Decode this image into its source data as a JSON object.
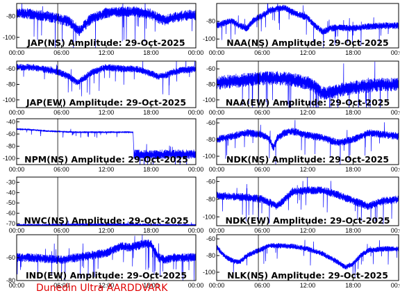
{
  "footer": "Dunedin Ultra AARDDVARK",
  "colors": {
    "trace": "#0000ff",
    "axis": "#000000",
    "footer": "#e00000"
  },
  "chart_data": [
    {
      "type": "line",
      "title": "JAP(NS) Amplitude: 29-Oct-2025",
      "xticks": [
        "00:00",
        "06:00",
        "12:00",
        "18:00",
        "00:00"
      ],
      "yticks": [
        -80,
        -100
      ],
      "ylim": [
        -110,
        -68
      ],
      "noise": 4.0,
      "marker": 5.5,
      "x": [
        0,
        2,
        4,
        5.5,
        7,
        8.4,
        10,
        12,
        14,
        16,
        18,
        19,
        20,
        21,
        22,
        23,
        24
      ],
      "y": [
        -77,
        -78,
        -80,
        -82,
        -85,
        -94,
        -82,
        -77,
        -76,
        -76,
        -78,
        -82,
        -84,
        -81,
        -80,
        -79,
        -79
      ]
    },
    {
      "type": "line",
      "title": "NAA(NS) Amplitude: 29-Oct-2025",
      "xticks": [
        "00:00",
        "06:00",
        "12:00",
        "18:00",
        "00:00"
      ],
      "yticks": [
        -80,
        -100
      ],
      "ylim": [
        -110,
        -60
      ],
      "noise": 3.0,
      "marker": 5.5,
      "x": [
        0,
        1,
        2,
        3,
        4,
        5,
        6,
        7,
        8,
        9,
        10,
        11,
        12,
        13,
        14,
        15,
        16,
        18,
        20,
        22,
        24
      ],
      "y": [
        -85,
        -82,
        -80,
        -85,
        -88,
        -78,
        -74,
        -68,
        -66,
        -65,
        -70,
        -73,
        -76,
        -85,
        -92,
        -88,
        -87,
        -88,
        -86,
        -85,
        -85
      ]
    },
    {
      "type": "line",
      "title": "JAP(EW) Amplitude: 29-Oct-2025",
      "xticks": [
        "00:00",
        "06:00",
        "12:00",
        "18:00",
        "00:00"
      ],
      "yticks": [
        -60,
        -80,
        -100
      ],
      "ylim": [
        -110,
        -50
      ],
      "noise": 3.5,
      "marker": 5.5,
      "x": [
        0,
        2,
        4,
        5.5,
        7,
        8.2,
        10,
        12,
        14,
        16,
        18,
        19,
        20,
        21,
        22,
        24
      ],
      "y": [
        -58,
        -58,
        -61,
        -64,
        -70,
        -78,
        -65,
        -58,
        -60,
        -60,
        -66,
        -70,
        -68,
        -64,
        -62,
        -60
      ]
    },
    {
      "type": "line",
      "title": "NAA(EW) Amplitude: 29-Oct-2025",
      "xticks": [
        "00:00",
        "06:00",
        "12:00",
        "18:00",
        "00:00"
      ],
      "yticks": [
        -60,
        -80,
        -100
      ],
      "ylim": [
        -110,
        -50
      ],
      "noise": 7.0,
      "marker": 5.5,
      "x": [
        0,
        2,
        4,
        6,
        8,
        10,
        12,
        13,
        14,
        15,
        16,
        18,
        20,
        22,
        24
      ],
      "y": [
        -78,
        -76,
        -74,
        -72,
        -72,
        -74,
        -78,
        -84,
        -92,
        -90,
        -88,
        -84,
        -82,
        -80,
        -80
      ]
    },
    {
      "type": "line",
      "title": "NPM(NS) Amplitude: 29-Oct-2025",
      "xticks": [
        "00:00",
        "06:00",
        "12:00",
        "18:00",
        "00:00"
      ],
      "yticks": [
        -40,
        -60,
        -80,
        -100
      ],
      "ylim": [
        -110,
        -35
      ],
      "noise": 1.2,
      "marker": 5.5,
      "x": [
        0,
        2,
        4,
        6,
        8,
        10,
        12,
        14,
        15.6,
        15.7,
        18,
        20,
        22,
        24
      ],
      "y": [
        -52,
        -53,
        -55,
        -56,
        -57,
        -57,
        -57,
        -57,
        -57,
        -93,
        -94,
        -93,
        -93,
        -93
      ],
      "noise_after": 15.7,
      "noise_late": 6.0
    },
    {
      "type": "line",
      "title": "NDK(NS) Amplitude: 29-Oct-2025",
      "xticks": [
        "00:00",
        "06:00",
        "12:00",
        "18:00",
        "00:00"
      ],
      "yticks": [
        -60,
        -80,
        -100
      ],
      "ylim": [
        -110,
        -55
      ],
      "noise": 3.5,
      "marker": 5.5,
      "x": [
        0,
        2,
        4,
        6,
        7,
        7.5,
        8,
        9,
        10,
        12,
        14,
        16,
        18,
        20,
        22,
        24
      ],
      "y": [
        -80,
        -76,
        -72,
        -74,
        -80,
        -90,
        -78,
        -72,
        -70,
        -75,
        -78,
        -84,
        -80,
        -72,
        -74,
        -76
      ]
    },
    {
      "type": "line",
      "title": "NWC(NS) Amplitude: 29-Oct-2025",
      "xticks": [
        "00:00",
        "06:00",
        "12:00",
        "18:00",
        "00:00"
      ],
      "yticks": [
        -30,
        -40,
        -50,
        -60,
        -70
      ],
      "ylim": [
        -72,
        -25
      ],
      "noise": 1.0,
      "marker": 5.5,
      "x": [
        0,
        4,
        8,
        12,
        16,
        20,
        24
      ],
      "y": [
        -71.5,
        -71.5,
        -71,
        -71,
        -71,
        -71.5,
        -71.5
      ]
    },
    {
      "type": "line",
      "title": "NDK(EW) Amplitude: 29-Oct-2025",
      "xticks": [
        "00:00",
        "06:00",
        "12:00",
        "18:00",
        "00:00"
      ],
      "yticks": [
        -60,
        -80,
        -100
      ],
      "ylim": [
        -110,
        -55
      ],
      "noise": 3.5,
      "marker": 5.5,
      "x": [
        0,
        2,
        4,
        6,
        7,
        8,
        9,
        10,
        12,
        14,
        16,
        18,
        20,
        22,
        24
      ],
      "y": [
        -76,
        -77,
        -78,
        -80,
        -84,
        -88,
        -80,
        -72,
        -70,
        -70,
        -75,
        -82,
        -88,
        -82,
        -80
      ]
    },
    {
      "type": "line",
      "title": "IND(EW) Amplitude: 29-Oct-2025",
      "xticks": [
        "00:00",
        "06:00",
        "12:00",
        "18:00",
        "00:00"
      ],
      "yticks": [
        -60,
        -80
      ],
      "ylim": [
        -80,
        -40
      ],
      "noise": 3.0,
      "marker": 5.5,
      "x": [
        0,
        2,
        4,
        6,
        8,
        10,
        12,
        13,
        14,
        15,
        16,
        17,
        18,
        19,
        20,
        21,
        22,
        24
      ],
      "y": [
        -60,
        -60,
        -61,
        -62,
        -60,
        -58,
        -56,
        -53,
        -50,
        -51,
        -50,
        -48,
        -48,
        -60,
        -62,
        -60,
        -60,
        -60
      ]
    },
    {
      "type": "line",
      "title": "NLK(NS) Amplitude: 29-Oct-2025",
      "xticks": [
        "00:00",
        "06:00",
        "12:00",
        "18:00",
        "00:00"
      ],
      "yticks": [
        -60,
        -80,
        -100
      ],
      "ylim": [
        -110,
        -55
      ],
      "noise": 2.5,
      "marker": 5.5,
      "x": [
        0,
        1,
        2,
        3,
        4,
        5,
        6,
        7,
        8,
        10,
        12,
        14,
        16,
        17,
        18,
        19,
        20,
        22,
        24
      ],
      "y": [
        -70,
        -80,
        -86,
        -88,
        -80,
        -76,
        -72,
        -68,
        -68,
        -69,
        -72,
        -78,
        -88,
        -94,
        -90,
        -80,
        -74,
        -72,
        -72
      ]
    }
  ]
}
